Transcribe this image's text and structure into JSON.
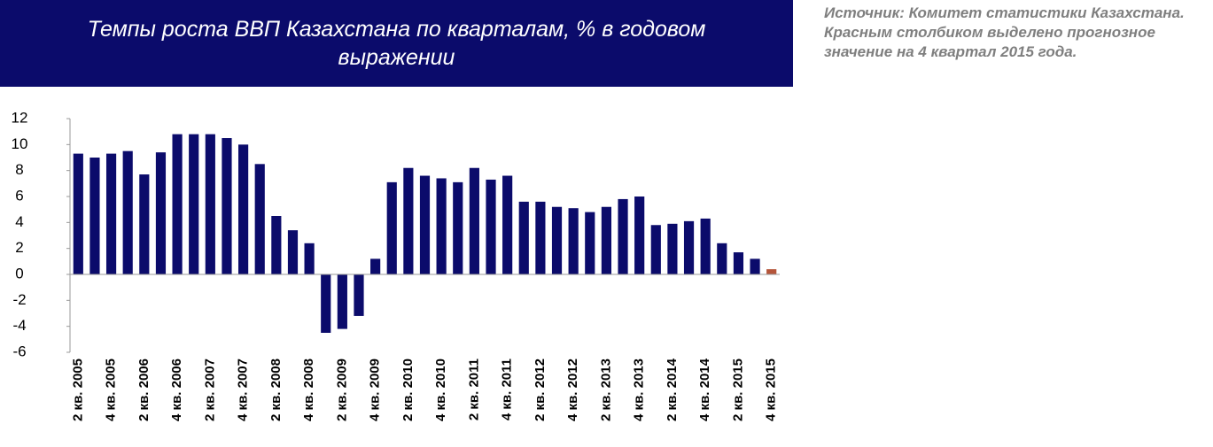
{
  "chart_data": {
    "type": "bar",
    "title": "Темпы роста ВВП Казахстана по кварталам, % в годовом выражении",
    "note": "Источник: Комитет статистики Казахстана. Красным столбиком выделено прогнозное значение на 4 квартал 2015 года.",
    "categories": [
      "2 кв. 2005",
      null,
      "4 кв. 2005",
      null,
      "2 кв. 2006",
      null,
      "4 кв. 2006",
      null,
      "2 кв. 2007",
      null,
      "4 кв. 2007",
      null,
      "2 кв. 2008",
      null,
      "4 кв. 2008",
      null,
      "2 кв. 2009",
      null,
      "4 кв. 2009",
      null,
      "2 кв. 2010",
      null,
      "4 кв. 2010",
      null,
      "2 кв. 2011",
      null,
      "4 кв. 2011",
      null,
      "2 кв. 2012",
      null,
      "4 кв. 2012",
      null,
      "2 кв. 2013",
      null,
      "4 кв. 2013",
      null,
      "2 кв. 2014",
      null,
      "4 кв. 2014",
      null,
      "2 кв. 2015",
      null,
      "4 кв. 2015"
    ],
    "values": [
      9.3,
      9.0,
      9.3,
      9.5,
      7.7,
      9.4,
      10.8,
      10.8,
      10.8,
      10.5,
      10.0,
      8.5,
      4.5,
      3.4,
      2.4,
      -4.5,
      -4.2,
      -3.2,
      1.2,
      7.1,
      8.2,
      7.6,
      7.4,
      7.1,
      8.2,
      7.3,
      7.6,
      5.6,
      5.6,
      5.2,
      5.1,
      4.8,
      5.2,
      5.8,
      6.0,
      3.8,
      3.9,
      4.1,
      4.3,
      2.4,
      1.7,
      1.2,
      0.4
    ],
    "colors": [
      "#0b0b6b",
      "#0b0b6b",
      "#0b0b6b",
      "#0b0b6b",
      "#0b0b6b",
      "#0b0b6b",
      "#0b0b6b",
      "#0b0b6b",
      "#0b0b6b",
      "#0b0b6b",
      "#0b0b6b",
      "#0b0b6b",
      "#0b0b6b",
      "#0b0b6b",
      "#0b0b6b",
      "#0b0b6b",
      "#0b0b6b",
      "#0b0b6b",
      "#0b0b6b",
      "#0b0b6b",
      "#0b0b6b",
      "#0b0b6b",
      "#0b0b6b",
      "#0b0b6b",
      "#0b0b6b",
      "#0b0b6b",
      "#0b0b6b",
      "#0b0b6b",
      "#0b0b6b",
      "#0b0b6b",
      "#0b0b6b",
      "#0b0b6b",
      "#0b0b6b",
      "#0b0b6b",
      "#0b0b6b",
      "#0b0b6b",
      "#0b0b6b",
      "#0b0b6b",
      "#0b0b6b",
      "#0b0b6b",
      "#0b0b6b",
      "#0b0b6b",
      "#b5553a"
    ],
    "ylim": [
      -6,
      12
    ],
    "yticks": [
      -6,
      -4,
      -2,
      0,
      2,
      4,
      6,
      8,
      10,
      12
    ],
    "grid": false
  }
}
